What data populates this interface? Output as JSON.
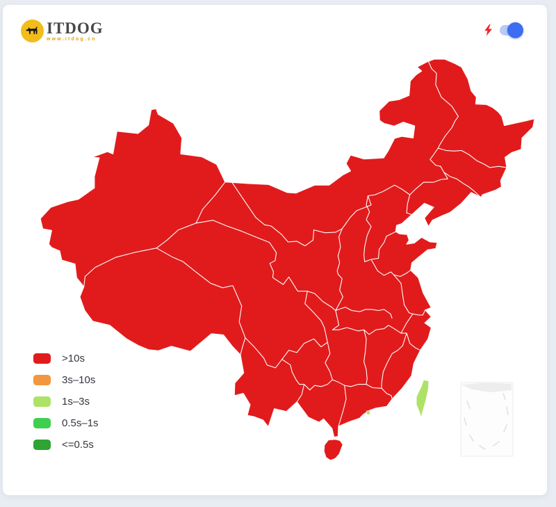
{
  "brand": {
    "name": "ITDOG",
    "url": "www.itdog.cn"
  },
  "controls": {
    "speed_toggle": {
      "state": "on",
      "track_color": "#b9cbf4",
      "knob_color": "#3d6df2"
    },
    "bolt_color": "#f5222d"
  },
  "legend": {
    "items": [
      {
        "label": ">10s",
        "color": "#e11b1c"
      },
      {
        "label": "3s–10s",
        "color": "#f2973d"
      },
      {
        "label": "1s–3s",
        "color": "#aee266"
      },
      {
        "label": "0.5s–1s",
        "color": "#3fcf4e"
      },
      {
        "label": "<=0.5s",
        "color": "#2fa433"
      }
    ]
  },
  "map": {
    "type": "choropleth",
    "region": "China",
    "border_color": "#ffffff",
    "regions": [
      {
        "name": "Mainland provinces",
        "class": ">10s",
        "color": "#e11b1c"
      },
      {
        "name": "Hainan",
        "class": ">10s",
        "color": "#e11b1c"
      },
      {
        "name": "Taiwan",
        "class": "1s–3s",
        "color": "#aee266"
      },
      {
        "name": "Hong Kong",
        "class": "1s–3s",
        "color": "#aee266"
      }
    ],
    "inset": {
      "name": "South China Sea inset",
      "fill": "#fdfdfd",
      "line": "#ebebeb"
    }
  }
}
